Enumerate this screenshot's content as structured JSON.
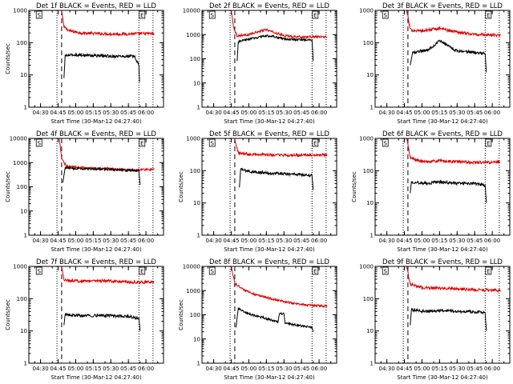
{
  "chart_data": [
    {
      "type": "line",
      "title": "Det 1f BLACK = Events, RED = LLD",
      "xlabel": "Start Time (30-Mar-12 04:27:40)",
      "ylabel": "Counts/sec",
      "yscale": "log",
      "ylim": [
        1,
        1000
      ],
      "yticks": [
        "1",
        "10",
        "100",
        "1000"
      ],
      "xticks": [
        "04:30",
        "04:45",
        "05:00",
        "05:15",
        "05:30",
        "05:45",
        "06:00"
      ],
      "markers": {
        "S": "04:27",
        "E": "05:55"
      },
      "vlines_dotted": [
        "04:44",
        "05:54",
        "06:06"
      ],
      "vlines_dashed": [
        "04:48"
      ],
      "series": [
        {
          "name": "LLD",
          "color": "#e00000",
          "start": "04:48",
          "end": "05:55",
          "points": [
            [
              "04:48",
              1000
            ],
            [
              "04:50",
              300
            ],
            [
              "04:55",
              230
            ],
            [
              "05:05",
              200
            ],
            [
              "05:20",
              190
            ],
            [
              "05:35",
              185
            ],
            [
              "05:55",
              190
            ],
            [
              "06:07",
              190
            ]
          ]
        },
        {
          "name": "Events",
          "color": "#000000",
          "start": "04:50",
          "end": "05:54",
          "points": [
            [
              "04:50",
              8
            ],
            [
              "04:51",
              40
            ],
            [
              "05:00",
              42
            ],
            [
              "05:15",
              40
            ],
            [
              "05:30",
              38
            ],
            [
              "05:50",
              38
            ],
            [
              "05:54",
              20
            ],
            [
              "05:54.5",
              6
            ]
          ]
        }
      ]
    },
    {
      "type": "line",
      "title": "Det 2f BLACK = Events, RED = LLD",
      "xlabel": "Start Time (30-Mar-12 04:27:40)",
      "ylabel": "",
      "yscale": "log",
      "ylim": [
        1,
        10000
      ],
      "yticks": [
        "1",
        "10",
        "100",
        "1000",
        "10000"
      ],
      "xticks": [
        "04:30",
        "04:45",
        "05:00",
        "05:15",
        "05:30",
        "05:45",
        "06:00"
      ],
      "markers": {
        "S": "04:27",
        "E": "05:55"
      },
      "vlines_dotted": [
        "04:44",
        "05:54",
        "06:06"
      ],
      "vlines_dashed": [
        "04:48"
      ],
      "series": [
        {
          "name": "LLD",
          "color": "#e00000",
          "start": "04:48",
          "end": "05:55",
          "points": [
            [
              "04:45",
              10000
            ],
            [
              "04:47",
              2000
            ],
            [
              "04:50",
              900
            ],
            [
              "05:00",
              1000
            ],
            [
              "05:10",
              1400
            ],
            [
              "05:15",
              1600
            ],
            [
              "05:20",
              1300
            ],
            [
              "05:30",
              900
            ],
            [
              "05:45",
              800
            ],
            [
              "06:07",
              800
            ]
          ]
        },
        {
          "name": "Events",
          "color": "#000000",
          "start": "04:50",
          "end": "05:54",
          "points": [
            [
              "04:50",
              80
            ],
            [
              "04:51",
              500
            ],
            [
              "05:00",
              650
            ],
            [
              "05:10",
              800
            ],
            [
              "05:15",
              900
            ],
            [
              "05:20",
              850
            ],
            [
              "05:30",
              650
            ],
            [
              "05:45",
              620
            ],
            [
              "05:54",
              600
            ],
            [
              "05:55",
              80
            ]
          ]
        }
      ]
    },
    {
      "type": "line",
      "title": "Det 3f BLACK = Events, RED = LLD",
      "xlabel": "Start Time (30-Mar-12 04:27:40)",
      "ylabel": "",
      "yscale": "log",
      "ylim": [
        1,
        1000
      ],
      "yticks": [
        "1",
        "10",
        "100",
        "1000"
      ],
      "xticks": [
        "04:30",
        "04:45",
        "05:00",
        "05:15",
        "05:30",
        "05:45",
        "06:00"
      ],
      "markers": {
        "S": "04:27",
        "E": "05:55"
      },
      "vlines_dotted": [
        "04:44",
        "05:54",
        "06:06"
      ],
      "vlines_dashed": [
        "04:48"
      ],
      "series": [
        {
          "name": "LLD",
          "color": "#e00000",
          "start": "04:48",
          "end": "05:55",
          "points": [
            [
              "04:47",
              1000
            ],
            [
              "04:50",
              250
            ],
            [
              "05:00",
              230
            ],
            [
              "05:15",
              280
            ],
            [
              "05:25",
              230
            ],
            [
              "05:45",
              180
            ],
            [
              "06:07",
              170
            ]
          ]
        },
        {
          "name": "Events",
          "color": "#000000",
          "start": "04:50",
          "end": "05:54",
          "points": [
            [
              "04:50",
              20
            ],
            [
              "04:52",
              50
            ],
            [
              "05:05",
              60
            ],
            [
              "05:10",
              80
            ],
            [
              "05:15",
              120
            ],
            [
              "05:20",
              90
            ],
            [
              "05:30",
              55
            ],
            [
              "05:45",
              50
            ],
            [
              "05:54",
              45
            ],
            [
              "05:55",
              12
            ]
          ]
        }
      ]
    },
    {
      "type": "line",
      "title": "Det 4f BLACK = Events, RED = LLD",
      "xlabel": "Start Time (30-Mar-12 04:27:40)",
      "ylabel": "Counts/sec",
      "yscale": "log",
      "ylim": [
        1,
        10000
      ],
      "yticks": [
        "1",
        "10",
        "100",
        "1000",
        "10000"
      ],
      "xticks": [
        "04:30",
        "04:45",
        "05:00",
        "05:15",
        "05:30",
        "05:45",
        "06:00"
      ],
      "markers": {
        "S": "04:27",
        "E": "05:55"
      },
      "vlines_dotted": [
        "04:44",
        "05:54",
        "06:06"
      ],
      "vlines_dashed": [
        "04:48"
      ],
      "series": [
        {
          "name": "LLD",
          "color": "#e00000",
          "start": "04:48",
          "end": "05:55",
          "points": [
            [
              "04:46",
              10000
            ],
            [
              "04:48",
              1500
            ],
            [
              "04:52",
              700
            ],
            [
              "05:10",
              600
            ],
            [
              "05:30",
              550
            ],
            [
              "05:45",
              500
            ],
            [
              "06:07",
              520
            ]
          ]
        },
        {
          "name": "Events",
          "color": "#000000",
          "start": "04:50",
          "end": "05:54",
          "points": [
            [
              "04:49",
              150
            ],
            [
              "04:51",
              600
            ],
            [
              "05:10",
              550
            ],
            [
              "05:30",
              520
            ],
            [
              "05:45",
              480
            ],
            [
              "05:54",
              450
            ],
            [
              "05:55",
              120
            ]
          ]
        }
      ]
    },
    {
      "type": "line",
      "title": "Det 5f BLACK = Events, RED = LLD",
      "xlabel": "Start Time (30-Mar-12 04:27:40)",
      "ylabel": "Counts/sec",
      "yscale": "log",
      "ylim": [
        1,
        1000
      ],
      "yticks": [
        "1",
        "10",
        "100",
        "1000"
      ],
      "xticks": [
        "04:30",
        "04:45",
        "05:00",
        "05:15",
        "05:30",
        "05:45",
        "06:00"
      ],
      "markers": {
        "S": "04:27",
        "E": "05:55"
      },
      "vlines_dotted": [
        "04:44",
        "05:54",
        "06:06"
      ],
      "vlines_dashed": [
        "04:48"
      ],
      "series": [
        {
          "name": "LLD",
          "color": "#e00000",
          "start": "04:48",
          "end": "05:55",
          "points": [
            [
              "04:48",
              1000
            ],
            [
              "04:51",
              350
            ],
            [
              "05:00",
              330
            ],
            [
              "05:15",
              310
            ],
            [
              "05:30",
              300
            ],
            [
              "05:45",
              300
            ],
            [
              "06:07",
              310
            ]
          ]
        },
        {
          "name": "Events",
          "color": "#000000",
          "start": "04:50",
          "end": "05:54",
          "points": [
            [
              "04:52",
              30
            ],
            [
              "04:53",
              110
            ],
            [
              "05:00",
              95
            ],
            [
              "05:15",
              85
            ],
            [
              "05:30",
              80
            ],
            [
              "05:45",
              75
            ],
            [
              "05:54",
              70
            ],
            [
              "05:55",
              25
            ]
          ]
        }
      ]
    },
    {
      "type": "line",
      "title": "Det 6f BLACK = Events, RED = LLD",
      "xlabel": "Start Time (30-Mar-12 04:27:40)",
      "ylabel": "Counts/sec",
      "yscale": "log",
      "ylim": [
        1,
        1000
      ],
      "yticks": [
        "1",
        "10",
        "100",
        "1000"
      ],
      "xticks": [
        "04:30",
        "04:45",
        "05:00",
        "05:15",
        "05:30",
        "05:45",
        "06:00"
      ],
      "markers": {
        "S": "04:27",
        "E": "05:55"
      },
      "vlines_dotted": [
        "04:44",
        "05:54",
        "06:06"
      ],
      "vlines_dashed": [
        "04:48"
      ],
      "series": [
        {
          "name": "LLD",
          "color": "#e00000",
          "start": "04:48",
          "end": "05:55",
          "points": [
            [
              "04:47",
              1000
            ],
            [
              "04:50",
              250
            ],
            [
              "05:00",
              190
            ],
            [
              "05:15",
              200
            ],
            [
              "05:30",
              190
            ],
            [
              "05:45",
              180
            ],
            [
              "06:07",
              180
            ]
          ]
        },
        {
          "name": "Events",
          "color": "#000000",
          "start": "04:50",
          "end": "05:54",
          "points": [
            [
              "04:50",
              20
            ],
            [
              "04:51",
              45
            ],
            [
              "05:05",
              40
            ],
            [
              "05:15",
              45
            ],
            [
              "05:30",
              40
            ],
            [
              "05:45",
              40
            ],
            [
              "05:54",
              35
            ],
            [
              "05:55",
              10
            ]
          ]
        }
      ]
    },
    {
      "type": "line",
      "title": "Det 7f BLACK = Events, RED = LLD",
      "xlabel": "Start Time (30-Mar-12 04:27:40)",
      "ylabel": "Counts/sec",
      "yscale": "log",
      "ylim": [
        1,
        1000
      ],
      "yticks": [
        "1",
        "10",
        "100",
        "1000"
      ],
      "xticks": [
        "04:30",
        "04:45",
        "05:00",
        "05:15",
        "05:30",
        "05:45",
        "06:00"
      ],
      "markers": {
        "S": "04:27",
        "E": "05:55"
      },
      "vlines_dotted": [
        "04:44",
        "05:54",
        "06:06"
      ],
      "vlines_dashed": [
        "04:48"
      ],
      "series": [
        {
          "name": "LLD",
          "color": "#e00000",
          "start": "04:48",
          "end": "05:55",
          "points": [
            [
              "04:48",
              1000
            ],
            [
              "04:50",
              380
            ],
            [
              "05:00",
              350
            ],
            [
              "05:15",
              360
            ],
            [
              "05:30",
              350
            ],
            [
              "05:45",
              330
            ],
            [
              "06:07",
              320
            ]
          ]
        },
        {
          "name": "Events",
          "color": "#000000",
          "start": "04:50",
          "end": "05:54",
          "points": [
            [
              "04:50",
              15
            ],
            [
              "04:51",
              32
            ],
            [
              "05:00",
              30
            ],
            [
              "05:15",
              30
            ],
            [
              "05:30",
              30
            ],
            [
              "05:45",
              28
            ],
            [
              "05:54",
              25
            ],
            [
              "05:55",
              10
            ]
          ]
        }
      ]
    },
    {
      "type": "line",
      "title": "Det 8f BLACK = Events, RED = LLD",
      "xlabel": "Start Time (30-Mar-12 04:27:40)",
      "ylabel": "Counts/sec",
      "yscale": "log",
      "ylim": [
        1,
        10000
      ],
      "yticks": [
        "1",
        "10",
        "100",
        "1000",
        "10000"
      ],
      "xticks": [
        "04:30",
        "04:45",
        "05:00",
        "05:15",
        "05:30",
        "05:45",
        "06:00"
      ],
      "markers": {
        "S": "04:27",
        "E": "05:55"
      },
      "vlines_dotted": [
        "04:44",
        "05:54",
        "06:06"
      ],
      "vlines_dashed": [
        "04:48"
      ],
      "series": [
        {
          "name": "LLD",
          "color": "#e00000",
          "start": "04:48",
          "end": "05:55",
          "points": [
            [
              "04:45",
              10000
            ],
            [
              "04:48",
              2000
            ],
            [
              "04:55",
              1100
            ],
            [
              "05:05",
              700
            ],
            [
              "05:20",
              450
            ],
            [
              "05:35",
              320
            ],
            [
              "05:50",
              250
            ],
            [
              "06:07",
              230
            ]
          ]
        },
        {
          "name": "Events",
          "color": "#000000",
          "start": "04:50",
          "end": "05:54",
          "points": [
            [
              "04:49",
              30
            ],
            [
              "04:51",
              180
            ],
            [
              "05:00",
              110
            ],
            [
              "05:15",
              70
            ],
            [
              "05:25",
              50
            ],
            [
              "05:26",
              110
            ],
            [
              "05:30",
              110
            ],
            [
              "05:31",
              45
            ],
            [
              "05:45",
              35
            ],
            [
              "05:54",
              30
            ],
            [
              "05:55",
              20
            ]
          ]
        }
      ]
    },
    {
      "type": "line",
      "title": "Det 9f BLACK = Events, RED = LLD",
      "xlabel": "Start Time (30-Mar-12 04:27:40)",
      "ylabel": "",
      "yscale": "log",
      "ylim": [
        1,
        1000
      ],
      "yticks": [
        "1",
        "10",
        "100",
        "1000"
      ],
      "xticks": [
        "04:30",
        "04:45",
        "05:00",
        "05:15",
        "05:30",
        "05:45",
        "06:00"
      ],
      "markers": {
        "S": "04:27",
        "E": "05:55"
      },
      "vlines_dotted": [
        "04:44",
        "05:54",
        "06:06"
      ],
      "vlines_dashed": [
        "04:48"
      ],
      "series": [
        {
          "name": "LLD",
          "color": "#e00000",
          "start": "04:48",
          "end": "05:55",
          "points": [
            [
              "04:47",
              1000
            ],
            [
              "04:50",
              280
            ],
            [
              "05:00",
              220
            ],
            [
              "05:15",
              210
            ],
            [
              "05:30",
              200
            ],
            [
              "05:45",
              190
            ],
            [
              "06:07",
              180
            ]
          ]
        },
        {
          "name": "Events",
          "color": "#000000",
          "start": "04:50",
          "end": "05:54",
          "points": [
            [
              "04:50",
              15
            ],
            [
              "04:51",
              45
            ],
            [
              "05:05",
              40
            ],
            [
              "05:20",
              42
            ],
            [
              "05:35",
              40
            ],
            [
              "05:50",
              38
            ],
            [
              "05:54",
              35
            ],
            [
              "05:55",
              10
            ]
          ]
        }
      ]
    }
  ]
}
